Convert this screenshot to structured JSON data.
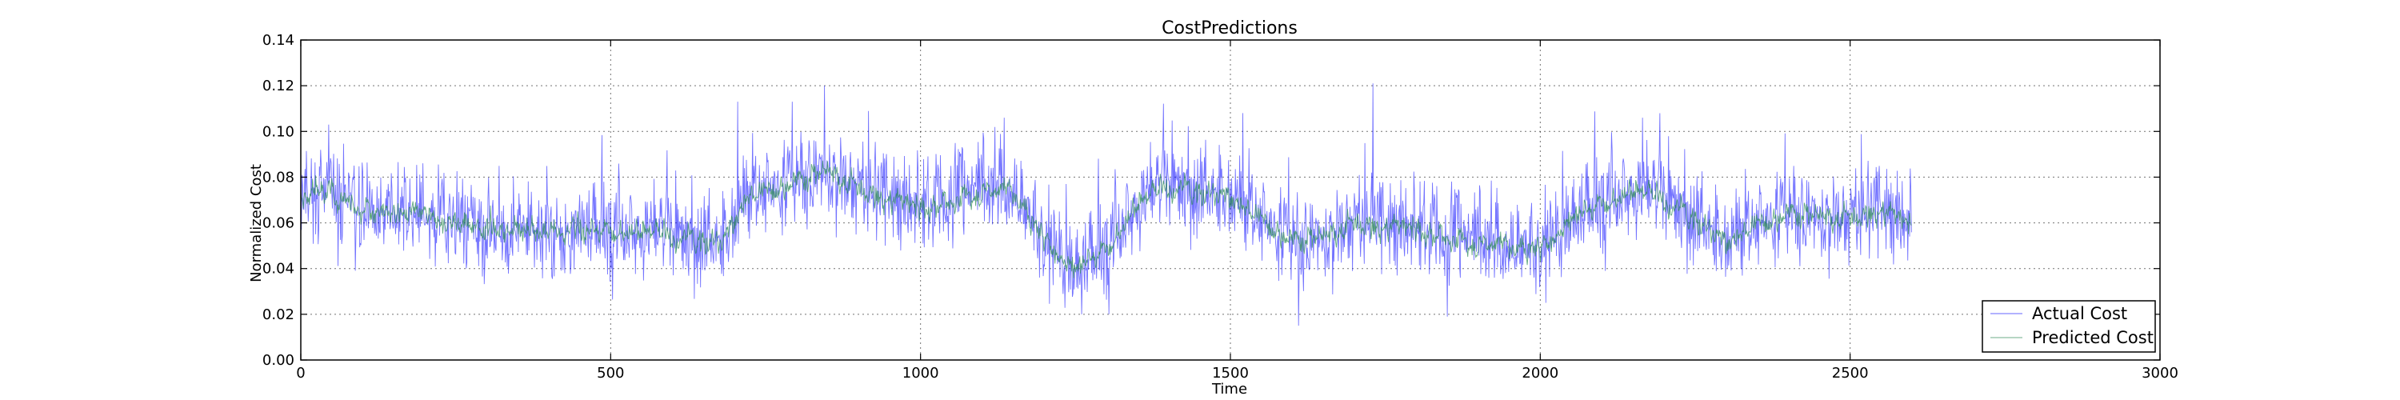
{
  "chart_data": {
    "type": "line",
    "title": "CostPredictions",
    "xlabel": "Time",
    "ylabel": "Normalized Cost",
    "xlim": [
      0,
      3000
    ],
    "ylim": [
      0.0,
      0.14
    ],
    "grid": true,
    "legend_position": "bottom-right",
    "x_ticks": [
      0,
      500,
      1000,
      1500,
      2000,
      2500,
      3000
    ],
    "y_ticks": [
      0.0,
      0.02,
      0.04,
      0.06,
      0.08,
      0.1,
      0.12,
      0.14
    ],
    "x_tick_labels": [
      "0",
      "500",
      "1000",
      "1500",
      "2000",
      "2500",
      "3000"
    ],
    "y_tick_labels": [
      "0.00",
      "0.02",
      "0.04",
      "0.06",
      "0.08",
      "0.10",
      "0.12",
      "0.14"
    ],
    "n_points": 2600,
    "series": [
      {
        "name": "Actual Cost",
        "color": "#0000ff",
        "description": "noisy, high-variance trace around the trend",
        "noise_amplitude": 0.014,
        "spikes": [
          [
            45,
            0.103
          ],
          [
            705,
            0.113
          ],
          [
            845,
            0.12
          ],
          [
            1135,
            0.106
          ],
          [
            1520,
            0.108
          ],
          [
            1730,
            0.121
          ],
          [
            2165,
            0.106
          ],
          [
            1610,
            0.015
          ],
          [
            1260,
            0.02
          ],
          [
            1850,
            0.019
          ]
        ]
      },
      {
        "name": "Predicted Cost",
        "color": "#2e8b57",
        "description": "smoother trace following the trend",
        "noise_amplitude": 0.005
      }
    ],
    "trend": {
      "x": [
        0,
        40,
        100,
        200,
        300,
        400,
        500,
        600,
        680,
        720,
        800,
        850,
        900,
        1000,
        1100,
        1150,
        1200,
        1250,
        1300,
        1350,
        1400,
        1450,
        1500,
        1550,
        1600,
        1650,
        1700,
        1800,
        1900,
        2000,
        2050,
        2100,
        2150,
        2200,
        2250,
        2300,
        2350,
        2400,
        2500,
        2550,
        2600
      ],
      "y": [
        0.07,
        0.075,
        0.066,
        0.062,
        0.058,
        0.056,
        0.058,
        0.054,
        0.052,
        0.072,
        0.078,
        0.083,
        0.075,
        0.066,
        0.075,
        0.074,
        0.052,
        0.04,
        0.05,
        0.068,
        0.076,
        0.074,
        0.072,
        0.062,
        0.052,
        0.054,
        0.06,
        0.057,
        0.052,
        0.048,
        0.062,
        0.07,
        0.074,
        0.07,
        0.062,
        0.052,
        0.06,
        0.064,
        0.062,
        0.066,
        0.058
      ]
    }
  }
}
